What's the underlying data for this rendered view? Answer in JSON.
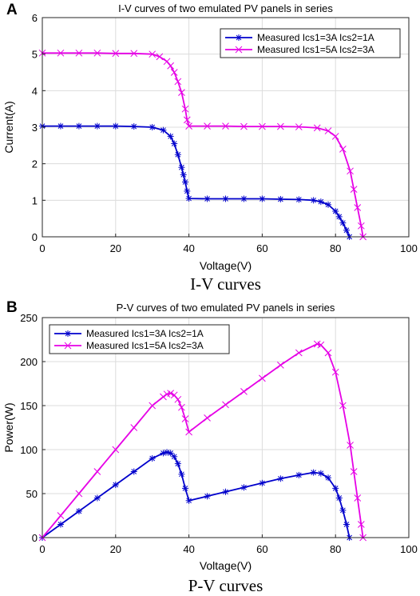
{
  "chart_data": [
    {
      "type": "line",
      "panel_label": "A",
      "title": "I-V curves of two emulated PV panels in series",
      "xlabel": "Voltage(V)",
      "ylabel": "Current(A)",
      "caption": "I-V curves",
      "xlim": [
        0,
        100
      ],
      "ylim": [
        0,
        6
      ],
      "xticks": [
        0,
        20,
        40,
        60,
        80,
        100
      ],
      "yticks": [
        0,
        1,
        2,
        3,
        4,
        5,
        6
      ],
      "grid": true,
      "legend_position": "top-right",
      "series": [
        {
          "name": "Measured Ics1=3A Ics2=1A",
          "color": "#0000cc",
          "marker": "asterisk",
          "x": [
            0,
            5,
            10,
            15,
            20,
            25,
            30,
            33,
            35,
            36,
            37,
            38,
            38.5,
            39,
            39.5,
            40,
            45,
            50,
            55,
            60,
            65,
            70,
            74,
            76,
            78,
            80,
            81,
            82,
            83,
            83.8
          ],
          "y": [
            3.03,
            3.03,
            3.03,
            3.03,
            3.03,
            3.02,
            3.0,
            2.92,
            2.75,
            2.55,
            2.25,
            1.9,
            1.7,
            1.5,
            1.25,
            1.05,
            1.04,
            1.04,
            1.04,
            1.04,
            1.03,
            1.02,
            1.0,
            0.96,
            0.88,
            0.7,
            0.55,
            0.38,
            0.18,
            0.0
          ]
        },
        {
          "name": "Measured Ics1=5A Ics2=3A",
          "color": "#e600e6",
          "marker": "x",
          "x": [
            0,
            5,
            10,
            15,
            20,
            25,
            30,
            32,
            34,
            35,
            36,
            37,
            38,
            39,
            39.5,
            40,
            45,
            50,
            55,
            60,
            65,
            70,
            75,
            78,
            80,
            82,
            84,
            85,
            86,
            87,
            87.5
          ],
          "y": [
            5.03,
            5.03,
            5.03,
            5.03,
            5.02,
            5.02,
            5.0,
            4.93,
            4.8,
            4.68,
            4.5,
            4.25,
            3.95,
            3.5,
            3.2,
            3.03,
            3.03,
            3.03,
            3.02,
            3.02,
            3.02,
            3.01,
            2.98,
            2.9,
            2.75,
            2.4,
            1.8,
            1.3,
            0.8,
            0.3,
            0.0
          ]
        }
      ]
    },
    {
      "type": "line",
      "panel_label": "B",
      "title": "P-V curves of two emulated PV panels in series",
      "xlabel": "Voltage(V)",
      "ylabel": "Power(W)",
      "caption": "P-V curves",
      "xlim": [
        0,
        100
      ],
      "ylim": [
        0,
        250
      ],
      "xticks": [
        0,
        20,
        40,
        60,
        80,
        100
      ],
      "yticks": [
        0,
        50,
        100,
        150,
        200,
        250
      ],
      "grid": true,
      "legend_position": "top-left",
      "series": [
        {
          "name": "Measured Ics1=3A Ics2=1A",
          "color": "#0000cc",
          "marker": "asterisk",
          "x": [
            0,
            5,
            10,
            15,
            20,
            25,
            30,
            33,
            34,
            35,
            36,
            37,
            38,
            39,
            40,
            45,
            50,
            55,
            60,
            65,
            70,
            74,
            76,
            78,
            80,
            81,
            82,
            83,
            83.8
          ],
          "y": [
            0,
            15,
            30,
            45,
            60,
            75,
            90,
            96,
            97,
            96,
            92,
            84,
            72,
            56,
            42,
            47,
            52,
            57,
            62,
            67,
            71,
            74,
            73,
            68,
            56,
            45,
            31,
            15,
            0
          ]
        },
        {
          "name": "Measured Ics1=5A Ics2=3A",
          "color": "#e600e6",
          "marker": "x",
          "x": [
            0,
            5,
            10,
            15,
            20,
            25,
            30,
            33,
            34,
            35,
            36,
            37,
            38,
            39,
            40,
            45,
            50,
            55,
            60,
            65,
            70,
            75,
            76,
            78,
            80,
            82,
            84,
            85,
            86,
            87,
            87.5
          ],
          "y": [
            0,
            25,
            50,
            75,
            100,
            125,
            150,
            160,
            163,
            164,
            162,
            157,
            148,
            135,
            120,
            136,
            151,
            166,
            181,
            196,
            210,
            220,
            219,
            210,
            188,
            150,
            105,
            75,
            45,
            15,
            0
          ]
        }
      ]
    }
  ]
}
